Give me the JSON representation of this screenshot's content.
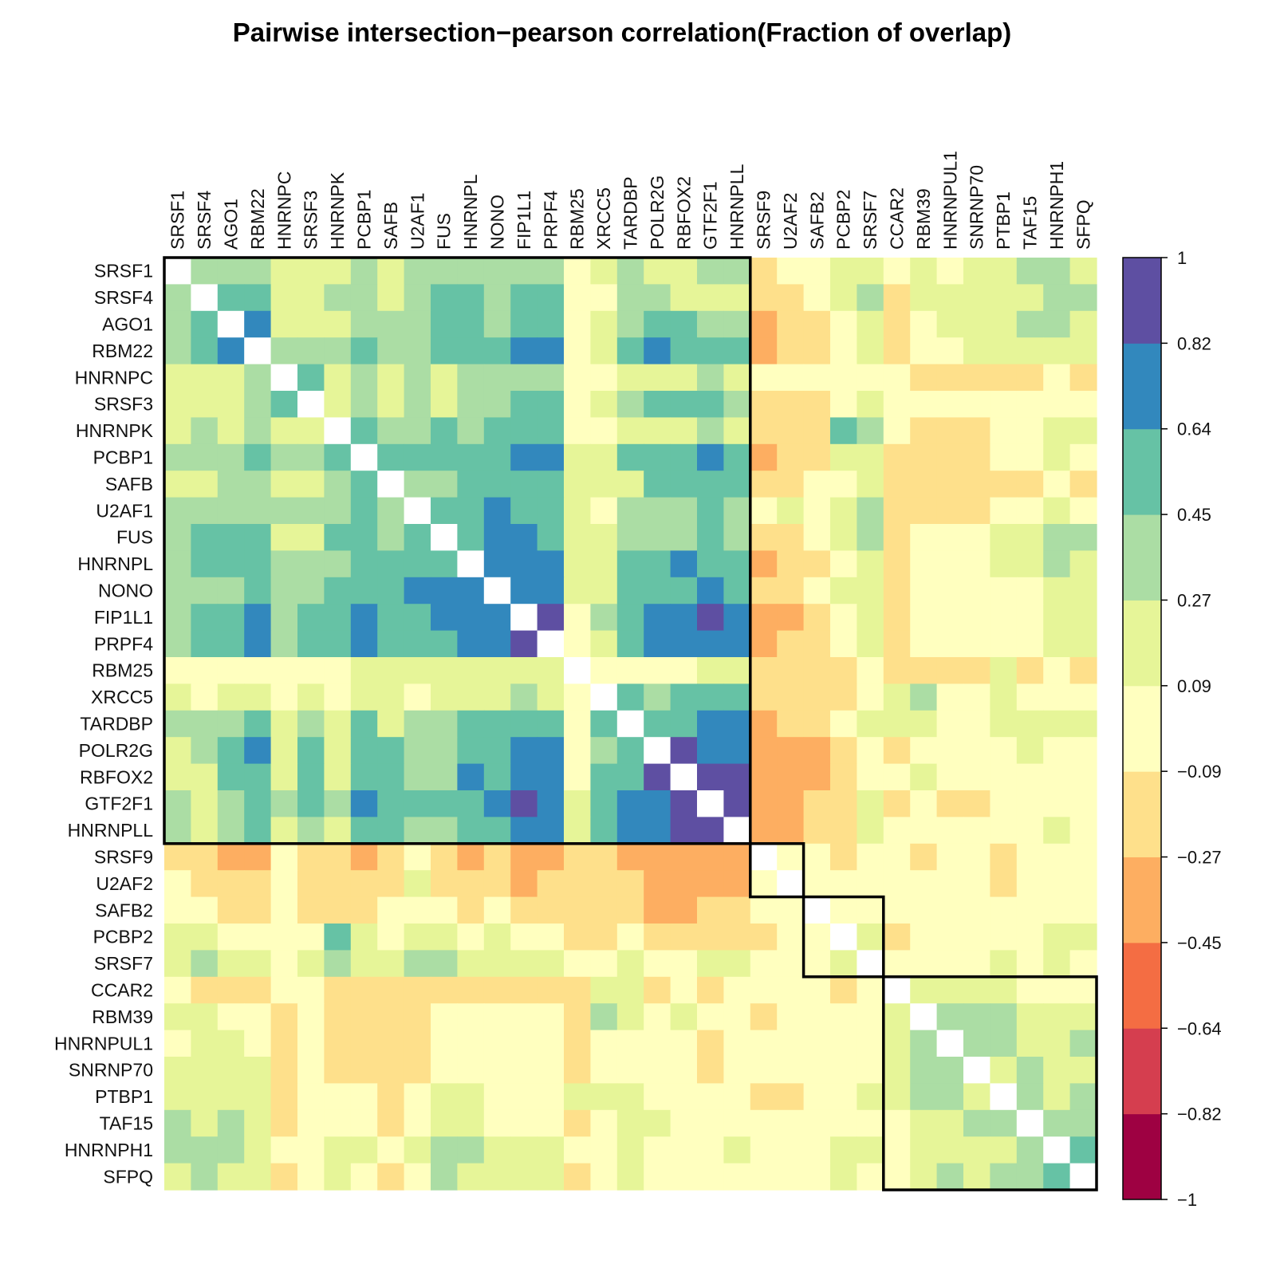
{
  "chart_data": {
    "type": "heatmap",
    "title": "Pairwise intersection−pearson correlation(Fraction of overlap)",
    "labels": [
      "SRSF1",
      "SRSF4",
      "AGO1",
      "RBM22",
      "HNRNPC",
      "SRSF3",
      "HNRNPK",
      "PCBP1",
      "SAFB",
      "U2AF1",
      "FUS",
      "HNRNPL",
      "NONO",
      "FIP1L1",
      "PRPF4",
      "RBM25",
      "XRCC5",
      "TARDBP",
      "POLR2G",
      "RBFOX2",
      "GTF2F1",
      "HNRNPLL",
      "SRSF9",
      "U2AF2",
      "SAFB2",
      "PCBP2",
      "SRSF7",
      "CCAR2",
      "RBM39",
      "HNRNPUL1",
      "SNRNP70",
      "PTBP1",
      "TAF15",
      "HNRNPH1",
      "SFPQ"
    ],
    "values": [
      [
        null,
        0.36,
        0.36,
        0.36,
        0.18,
        0.18,
        0.18,
        0.36,
        0.18,
        0.36,
        0.36,
        0.36,
        0.36,
        0.36,
        0.36,
        0.0,
        0.18,
        0.36,
        0.18,
        0.18,
        0.36,
        0.36,
        -0.18,
        0.0,
        0.0,
        0.18,
        0.18,
        0.0,
        0.18,
        0.0,
        0.18,
        0.18,
        0.36,
        0.36,
        0.18
      ],
      [
        0.36,
        null,
        0.55,
        0.55,
        0.18,
        0.18,
        0.36,
        0.36,
        0.18,
        0.36,
        0.55,
        0.55,
        0.36,
        0.55,
        0.55,
        0.0,
        0.0,
        0.36,
        0.36,
        0.18,
        0.18,
        0.18,
        -0.18,
        -0.18,
        0.0,
        0.18,
        0.36,
        -0.18,
        0.18,
        0.18,
        0.18,
        0.18,
        0.18,
        0.36,
        0.36
      ],
      [
        0.36,
        0.55,
        null,
        0.73,
        0.18,
        0.18,
        0.18,
        0.36,
        0.36,
        0.36,
        0.55,
        0.55,
        0.36,
        0.55,
        0.55,
        0.0,
        0.18,
        0.36,
        0.55,
        0.55,
        0.36,
        0.36,
        -0.36,
        -0.18,
        -0.18,
        0.0,
        0.18,
        -0.18,
        0.0,
        0.18,
        0.18,
        0.18,
        0.36,
        0.36,
        0.18
      ],
      [
        0.36,
        0.55,
        0.73,
        null,
        0.36,
        0.36,
        0.36,
        0.55,
        0.36,
        0.36,
        0.55,
        0.55,
        0.55,
        0.73,
        0.73,
        0.0,
        0.18,
        0.55,
        0.73,
        0.55,
        0.55,
        0.55,
        -0.36,
        -0.18,
        -0.18,
        0.0,
        0.18,
        -0.18,
        0.0,
        0.0,
        0.18,
        0.18,
        0.18,
        0.18,
        0.18
      ],
      [
        0.18,
        0.18,
        0.18,
        0.36,
        null,
        0.55,
        0.18,
        0.36,
        0.18,
        0.36,
        0.18,
        0.36,
        0.36,
        0.36,
        0.36,
        0.0,
        0.0,
        0.18,
        0.18,
        0.18,
        0.36,
        0.18,
        0.0,
        0.0,
        0.0,
        0.0,
        0.0,
        0.0,
        -0.18,
        -0.18,
        -0.18,
        -0.18,
        -0.18,
        0.0,
        -0.18
      ],
      [
        0.18,
        0.18,
        0.18,
        0.36,
        0.55,
        null,
        0.18,
        0.36,
        0.18,
        0.36,
        0.18,
        0.36,
        0.36,
        0.55,
        0.55,
        0.0,
        0.18,
        0.36,
        0.55,
        0.55,
        0.55,
        0.36,
        -0.18,
        -0.18,
        -0.18,
        0.0,
        0.18,
        0.0,
        0.0,
        0.0,
        0.0,
        0.0,
        0.0,
        0.0,
        0.0
      ],
      [
        0.18,
        0.36,
        0.18,
        0.36,
        0.18,
        0.18,
        null,
        0.55,
        0.36,
        0.36,
        0.55,
        0.36,
        0.55,
        0.55,
        0.55,
        0.0,
        0.0,
        0.18,
        0.18,
        0.18,
        0.36,
        0.18,
        -0.18,
        -0.18,
        -0.18,
        0.55,
        0.36,
        0.0,
        -0.18,
        -0.18,
        -0.18,
        0.0,
        0.0,
        0.18,
        0.18
      ],
      [
        0.36,
        0.36,
        0.36,
        0.55,
        0.36,
        0.36,
        0.55,
        null,
        0.55,
        0.55,
        0.55,
        0.55,
        0.55,
        0.73,
        0.73,
        0.18,
        0.18,
        0.55,
        0.55,
        0.55,
        0.73,
        0.55,
        -0.36,
        -0.18,
        -0.18,
        0.18,
        0.18,
        -0.18,
        -0.18,
        -0.18,
        -0.18,
        0.0,
        0.0,
        0.18,
        0.0
      ],
      [
        0.18,
        0.18,
        0.36,
        0.36,
        0.18,
        0.18,
        0.36,
        0.55,
        null,
        0.36,
        0.36,
        0.55,
        0.55,
        0.55,
        0.55,
        0.18,
        0.18,
        0.18,
        0.55,
        0.55,
        0.55,
        0.55,
        -0.18,
        -0.18,
        0.0,
        0.0,
        0.18,
        -0.18,
        -0.18,
        -0.18,
        -0.18,
        -0.18,
        -0.18,
        0.0,
        -0.18
      ],
      [
        0.36,
        0.36,
        0.36,
        0.36,
        0.36,
        0.36,
        0.36,
        0.55,
        0.36,
        null,
        0.55,
        0.55,
        0.73,
        0.55,
        0.55,
        0.18,
        0.0,
        0.36,
        0.36,
        0.36,
        0.55,
        0.36,
        0.0,
        0.18,
        0.0,
        0.18,
        0.36,
        -0.18,
        -0.18,
        -0.18,
        -0.18,
        0.0,
        0.0,
        0.18,
        0.0
      ],
      [
        0.36,
        0.55,
        0.55,
        0.55,
        0.18,
        0.18,
        0.55,
        0.55,
        0.36,
        0.55,
        null,
        0.55,
        0.73,
        0.73,
        0.55,
        0.18,
        0.18,
        0.36,
        0.36,
        0.36,
        0.55,
        0.36,
        -0.18,
        -0.18,
        0.0,
        0.18,
        0.36,
        -0.18,
        0.0,
        0.0,
        0.0,
        0.18,
        0.18,
        0.36,
        0.36
      ],
      [
        0.36,
        0.55,
        0.55,
        0.55,
        0.36,
        0.36,
        0.36,
        0.55,
        0.55,
        0.55,
        0.55,
        null,
        0.73,
        0.73,
        0.73,
        0.18,
        0.18,
        0.55,
        0.55,
        0.73,
        0.55,
        0.55,
        -0.36,
        -0.18,
        -0.18,
        0.0,
        0.18,
        -0.18,
        0.0,
        0.0,
        0.0,
        0.18,
        0.18,
        0.36,
        0.18
      ],
      [
        0.36,
        0.36,
        0.36,
        0.55,
        0.36,
        0.36,
        0.55,
        0.55,
        0.55,
        0.73,
        0.73,
        0.73,
        null,
        0.73,
        0.73,
        0.18,
        0.18,
        0.55,
        0.55,
        0.55,
        0.73,
        0.55,
        -0.18,
        -0.18,
        0.0,
        0.18,
        0.18,
        -0.18,
        0.0,
        0.0,
        0.0,
        0.0,
        0.0,
        0.18,
        0.18
      ],
      [
        0.36,
        0.55,
        0.55,
        0.73,
        0.36,
        0.55,
        0.55,
        0.73,
        0.55,
        0.55,
        0.73,
        0.73,
        0.73,
        null,
        0.91,
        0.0,
        0.36,
        0.55,
        0.73,
        0.73,
        0.91,
        0.73,
        -0.36,
        -0.36,
        -0.18,
        0.0,
        0.18,
        -0.18,
        0.0,
        0.0,
        0.0,
        0.0,
        0.0,
        0.18,
        0.18
      ],
      [
        0.36,
        0.55,
        0.55,
        0.73,
        0.36,
        0.55,
        0.55,
        0.73,
        0.55,
        0.55,
        0.55,
        0.73,
        0.73,
        0.91,
        null,
        0.0,
        0.18,
        0.55,
        0.73,
        0.73,
        0.73,
        0.73,
        -0.36,
        -0.18,
        -0.18,
        0.0,
        0.18,
        -0.18,
        0.0,
        0.0,
        0.0,
        0.0,
        0.0,
        0.18,
        0.18
      ],
      [
        0.0,
        0.0,
        0.0,
        0.0,
        0.0,
        0.0,
        0.0,
        0.18,
        0.18,
        0.18,
        0.18,
        0.18,
        0.18,
        0.18,
        0.18,
        null,
        0.0,
        0.0,
        0.0,
        0.0,
        0.18,
        0.18,
        -0.18,
        -0.18,
        -0.18,
        -0.18,
        0.0,
        -0.18,
        -0.18,
        -0.18,
        -0.18,
        0.18,
        -0.18,
        0.0,
        -0.18
      ],
      [
        0.18,
        0.0,
        0.18,
        0.18,
        0.0,
        0.18,
        0.0,
        0.18,
        0.18,
        0.0,
        0.18,
        0.18,
        0.18,
        0.36,
        0.18,
        0.0,
        null,
        0.55,
        0.36,
        0.55,
        0.55,
        0.55,
        -0.18,
        -0.18,
        -0.18,
        -0.18,
        0.0,
        0.18,
        0.36,
        0.0,
        0.0,
        0.18,
        0.0,
        0.0,
        0.0
      ],
      [
        0.36,
        0.36,
        0.36,
        0.55,
        0.18,
        0.36,
        0.18,
        0.55,
        0.18,
        0.36,
        0.36,
        0.55,
        0.55,
        0.55,
        0.55,
        0.0,
        0.55,
        null,
        0.55,
        0.55,
        0.73,
        0.73,
        -0.36,
        -0.18,
        -0.18,
        0.0,
        0.18,
        0.18,
        0.18,
        0.0,
        0.0,
        0.18,
        0.18,
        0.18,
        0.18
      ],
      [
        0.18,
        0.36,
        0.55,
        0.73,
        0.18,
        0.55,
        0.18,
        0.55,
        0.55,
        0.36,
        0.36,
        0.55,
        0.55,
        0.73,
        0.73,
        0.0,
        0.36,
        0.55,
        null,
        0.91,
        0.73,
        0.73,
        -0.36,
        -0.36,
        -0.36,
        -0.18,
        0.0,
        -0.18,
        0.0,
        0.0,
        0.0,
        0.0,
        0.18,
        0.0,
        0.0
      ],
      [
        0.18,
        0.18,
        0.55,
        0.55,
        0.18,
        0.55,
        0.18,
        0.55,
        0.55,
        0.36,
        0.36,
        0.73,
        0.55,
        0.73,
        0.73,
        0.0,
        0.55,
        0.55,
        0.91,
        null,
        0.91,
        0.91,
        -0.36,
        -0.36,
        -0.36,
        -0.18,
        0.0,
        0.0,
        0.18,
        0.0,
        0.0,
        0.0,
        0.0,
        0.0,
        0.0
      ],
      [
        0.36,
        0.18,
        0.36,
        0.55,
        0.36,
        0.55,
        0.36,
        0.73,
        0.55,
        0.55,
        0.55,
        0.55,
        0.73,
        0.91,
        0.73,
        0.18,
        0.55,
        0.73,
        0.73,
        0.91,
        null,
        0.91,
        -0.36,
        -0.36,
        -0.18,
        -0.18,
        0.18,
        -0.18,
        0.0,
        -0.18,
        -0.18,
        0.0,
        0.0,
        0.0,
        0.0
      ],
      [
        0.36,
        0.18,
        0.36,
        0.55,
        0.18,
        0.36,
        0.18,
        0.55,
        0.55,
        0.36,
        0.36,
        0.55,
        0.55,
        0.73,
        0.73,
        0.18,
        0.55,
        0.73,
        0.73,
        0.91,
        0.91,
        null,
        -0.36,
        -0.36,
        -0.18,
        -0.18,
        0.18,
        0.0,
        0.0,
        0.0,
        0.0,
        0.0,
        0.0,
        0.18,
        0.0
      ],
      [
        -0.18,
        -0.18,
        -0.36,
        -0.36,
        0.0,
        -0.18,
        -0.18,
        -0.36,
        -0.18,
        0.0,
        -0.18,
        -0.36,
        -0.18,
        -0.36,
        -0.36,
        -0.18,
        -0.18,
        -0.36,
        -0.36,
        -0.36,
        -0.36,
        -0.36,
        null,
        0.0,
        0.0,
        -0.18,
        0.0,
        0.0,
        -0.18,
        0.0,
        0.0,
        -0.18,
        0.0,
        0.0,
        0.0
      ],
      [
        0.0,
        -0.18,
        -0.18,
        -0.18,
        0.0,
        -0.18,
        -0.18,
        -0.18,
        -0.18,
        0.18,
        -0.18,
        -0.18,
        -0.18,
        -0.36,
        -0.18,
        -0.18,
        -0.18,
        -0.18,
        -0.36,
        -0.36,
        -0.36,
        -0.36,
        0.0,
        null,
        0.0,
        0.0,
        0.0,
        0.0,
        0.0,
        0.0,
        0.0,
        -0.18,
        0.0,
        0.0,
        0.0
      ],
      [
        0.0,
        0.0,
        -0.18,
        -0.18,
        0.0,
        -0.18,
        -0.18,
        -0.18,
        0.0,
        0.0,
        0.0,
        -0.18,
        0.0,
        -0.18,
        -0.18,
        -0.18,
        -0.18,
        -0.18,
        -0.36,
        -0.36,
        -0.18,
        -0.18,
        0.0,
        0.0,
        null,
        0.0,
        0.0,
        0.0,
        0.0,
        0.0,
        0.0,
        0.0,
        0.0,
        0.0,
        0.0
      ],
      [
        0.18,
        0.18,
        0.0,
        0.0,
        0.0,
        0.0,
        0.55,
        0.18,
        0.0,
        0.18,
        0.18,
        0.0,
        0.18,
        0.0,
        0.0,
        -0.18,
        -0.18,
        0.0,
        -0.18,
        -0.18,
        -0.18,
        -0.18,
        -0.18,
        0.0,
        0.0,
        null,
        0.18,
        -0.18,
        0.0,
        0.0,
        0.0,
        0.0,
        0.0,
        0.18,
        0.18
      ],
      [
        0.18,
        0.36,
        0.18,
        0.18,
        0.0,
        0.18,
        0.36,
        0.18,
        0.18,
        0.36,
        0.36,
        0.18,
        0.18,
        0.18,
        0.18,
        0.0,
        0.0,
        0.18,
        0.0,
        0.0,
        0.18,
        0.18,
        0.0,
        0.0,
        0.0,
        0.18,
        null,
        0.0,
        0.0,
        0.0,
        0.0,
        0.18,
        0.0,
        0.18,
        0.0
      ],
      [
        0.0,
        -0.18,
        -0.18,
        -0.18,
        0.0,
        0.0,
        -0.18,
        -0.18,
        -0.18,
        -0.18,
        -0.18,
        -0.18,
        -0.18,
        -0.18,
        -0.18,
        -0.18,
        0.18,
        0.18,
        -0.18,
        0.0,
        -0.18,
        0.0,
        0.0,
        0.0,
        0.0,
        -0.18,
        0.0,
        null,
        0.18,
        0.18,
        0.18,
        0.18,
        0.0,
        0.0,
        0.0
      ],
      [
        0.18,
        0.18,
        0.0,
        0.0,
        -0.18,
        0.0,
        -0.18,
        -0.18,
        -0.18,
        -0.18,
        0.0,
        0.0,
        0.0,
        0.0,
        0.0,
        -0.18,
        0.36,
        0.18,
        0.0,
        0.18,
        0.0,
        0.0,
        -0.18,
        0.0,
        0.0,
        0.0,
        0.0,
        0.18,
        null,
        0.36,
        0.36,
        0.36,
        0.18,
        0.18,
        0.18
      ],
      [
        0.0,
        0.18,
        0.18,
        0.0,
        -0.18,
        0.0,
        -0.18,
        -0.18,
        -0.18,
        -0.18,
        0.0,
        0.0,
        0.0,
        0.0,
        0.0,
        -0.18,
        0.0,
        0.0,
        0.0,
        0.0,
        -0.18,
        0.0,
        0.0,
        0.0,
        0.0,
        0.0,
        0.0,
        0.18,
        0.36,
        null,
        0.36,
        0.36,
        0.18,
        0.18,
        0.36
      ],
      [
        0.18,
        0.18,
        0.18,
        0.18,
        -0.18,
        0.0,
        -0.18,
        -0.18,
        -0.18,
        -0.18,
        0.0,
        0.0,
        0.0,
        0.0,
        0.0,
        -0.18,
        0.0,
        0.0,
        0.0,
        0.0,
        -0.18,
        0.0,
        0.0,
        0.0,
        0.0,
        0.0,
        0.0,
        0.18,
        0.36,
        0.36,
        null,
        0.18,
        0.36,
        0.18,
        0.18
      ],
      [
        0.18,
        0.18,
        0.18,
        0.18,
        -0.18,
        0.0,
        0.0,
        0.0,
        -0.18,
        0.0,
        0.18,
        0.18,
        0.0,
        0.0,
        0.0,
        0.18,
        0.18,
        0.18,
        0.0,
        0.0,
        0.0,
        0.0,
        -0.18,
        -0.18,
        0.0,
        0.0,
        0.18,
        0.18,
        0.36,
        0.36,
        0.18,
        null,
        0.36,
        0.18,
        0.36
      ],
      [
        0.36,
        0.18,
        0.36,
        0.18,
        -0.18,
        0.0,
        0.0,
        0.0,
        -0.18,
        0.0,
        0.18,
        0.18,
        0.0,
        0.0,
        0.0,
        -0.18,
        0.0,
        0.18,
        0.18,
        0.0,
        0.0,
        0.0,
        0.0,
        0.0,
        0.0,
        0.0,
        0.0,
        0.0,
        0.18,
        0.18,
        0.36,
        0.36,
        null,
        0.36,
        0.36
      ],
      [
        0.36,
        0.36,
        0.36,
        0.18,
        0.0,
        0.0,
        0.18,
        0.18,
        0.0,
        0.18,
        0.36,
        0.36,
        0.18,
        0.18,
        0.18,
        0.0,
        0.0,
        0.18,
        0.0,
        0.0,
        0.0,
        0.18,
        0.0,
        0.0,
        0.0,
        0.18,
        0.18,
        0.0,
        0.18,
        0.18,
        0.18,
        0.18,
        0.36,
        null,
        0.55
      ],
      [
        0.18,
        0.36,
        0.18,
        0.18,
        -0.18,
        0.0,
        0.18,
        0.0,
        -0.18,
        0.0,
        0.36,
        0.18,
        0.18,
        0.18,
        0.18,
        -0.18,
        0.0,
        0.18,
        0.0,
        0.0,
        0.0,
        0.0,
        0.0,
        0.0,
        0.0,
        0.18,
        0.0,
        0.0,
        0.18,
        0.36,
        0.18,
        0.36,
        0.36,
        0.55,
        null
      ]
    ],
    "clusters": [
      {
        "start": 0,
        "end": 21
      },
      {
        "start": 22,
        "end": 23
      },
      {
        "start": 24,
        "end": 26
      },
      {
        "start": 27,
        "end": 34
      }
    ],
    "colorbar": {
      "ticks": [
        "1",
        "0.82",
        "0.64",
        "0.45",
        "0.27",
        "0.09",
        "−0.09",
        "−0.27",
        "−0.45",
        "−0.64",
        "−0.82",
        "−1"
      ],
      "range": [
        -1,
        1
      ],
      "colors": [
        "#9e0142",
        "#d53e4f",
        "#f46d43",
        "#fdae61",
        "#fee08b",
        "#ffffbf",
        "#e6f598",
        "#abdda4",
        "#66c2a5",
        "#3288bd",
        "#5e4fa2"
      ]
    }
  }
}
